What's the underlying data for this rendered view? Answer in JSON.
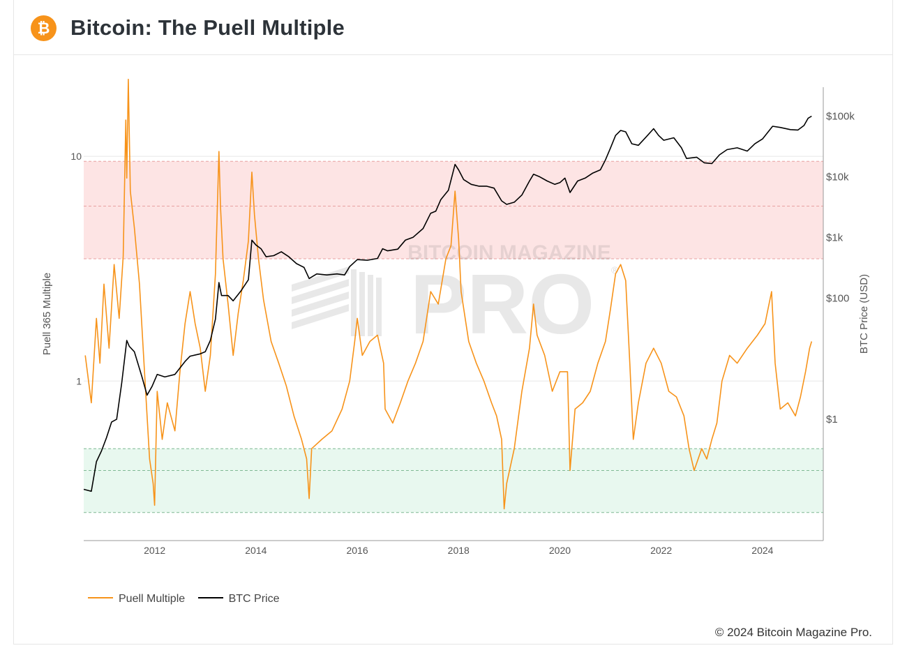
{
  "header": {
    "title": "Bitcoin: The Puell Multiple",
    "logo_glyph": "₿",
    "logo_icon": "bitcoin-logo-icon"
  },
  "watermark": {
    "line1": "BITCOIN MAGAZINE",
    "line2": "PRO",
    "mark": "®"
  },
  "footer": {
    "copyright": "© 2024 Bitcoin Magazine Pro."
  },
  "colors": {
    "puell": "#f7931a",
    "price": "#000000",
    "red_zone": "#fde4e4",
    "green_zone": "#e8f8ef",
    "red_dash": "#e8a0a0",
    "green_dash": "#7fb893",
    "grid": "#e8e8e8",
    "axis": "#999999"
  },
  "chart_data": {
    "type": "line",
    "title": "Bitcoin: The Puell Multiple",
    "xlabel": "",
    "ylabel_left": "Puell 365 Multiple",
    "ylabel_right": "BTC Price (USD)",
    "x_range": [
      2010.6,
      2025.2
    ],
    "x_ticks": [
      2012,
      2014,
      2016,
      2018,
      2020,
      2022,
      2024
    ],
    "y_left": {
      "scale": "log",
      "range": [
        0.195,
        20.3
      ],
      "ticks": [
        1,
        10
      ],
      "tick_labels": [
        "1",
        "10"
      ]
    },
    "y_right": {
      "scale": "log",
      "range": [
        0.01,
        300000
      ],
      "ticks": [
        1,
        100,
        1000,
        10000,
        100000
      ],
      "tick_labels": [
        "$1",
        "$100",
        "$1k",
        "$10k",
        "$100k"
      ]
    },
    "bands": [
      {
        "name": "red-zone",
        "axis": "left",
        "from": 3.5,
        "to": 9.5,
        "dashed_lines": [
          3.5,
          6.0,
          9.5
        ]
      },
      {
        "name": "green-zone",
        "axis": "left",
        "from": 0.26,
        "to": 0.5,
        "dashed_lines": [
          0.26,
          0.4,
          0.5
        ]
      }
    ],
    "legend": {
      "placement": "bottom-left"
    },
    "series": [
      {
        "name": "Puell Multiple",
        "axis": "left",
        "points": [
          [
            2010.63,
            1.3
          ],
          [
            2010.75,
            0.8
          ],
          [
            2010.85,
            1.9
          ],
          [
            2010.92,
            1.2
          ],
          [
            2011.0,
            2.7
          ],
          [
            2011.1,
            1.4
          ],
          [
            2011.2,
            3.3
          ],
          [
            2011.3,
            1.9
          ],
          [
            2011.38,
            3.6
          ],
          [
            2011.43,
            14.5
          ],
          [
            2011.45,
            8.0
          ],
          [
            2011.48,
            22.0
          ],
          [
            2011.52,
            7.0
          ],
          [
            2011.6,
            4.8
          ],
          [
            2011.7,
            2.7
          ],
          [
            2011.8,
            1.1
          ],
          [
            2011.9,
            0.45
          ],
          [
            2011.97,
            0.35
          ],
          [
            2012.0,
            0.28
          ],
          [
            2012.05,
            0.9
          ],
          [
            2012.15,
            0.55
          ],
          [
            2012.25,
            0.8
          ],
          [
            2012.4,
            0.6
          ],
          [
            2012.5,
            1.1
          ],
          [
            2012.6,
            1.8
          ],
          [
            2012.7,
            2.5
          ],
          [
            2012.8,
            1.8
          ],
          [
            2012.9,
            1.4
          ],
          [
            2013.0,
            0.9
          ],
          [
            2013.1,
            1.3
          ],
          [
            2013.2,
            3.0
          ],
          [
            2013.27,
            10.5
          ],
          [
            2013.3,
            6.0
          ],
          [
            2013.35,
            3.5
          ],
          [
            2013.45,
            2.2
          ],
          [
            2013.55,
            1.3
          ],
          [
            2013.65,
            2.0
          ],
          [
            2013.75,
            2.8
          ],
          [
            2013.85,
            4.2
          ],
          [
            2013.92,
            8.5
          ],
          [
            2013.97,
            5.5
          ],
          [
            2014.05,
            3.5
          ],
          [
            2014.15,
            2.3
          ],
          [
            2014.3,
            1.5
          ],
          [
            2014.45,
            1.2
          ],
          [
            2014.6,
            0.95
          ],
          [
            2014.75,
            0.7
          ],
          [
            2014.9,
            0.55
          ],
          [
            2015.0,
            0.45
          ],
          [
            2015.05,
            0.3
          ],
          [
            2015.1,
            0.5
          ],
          [
            2015.3,
            0.55
          ],
          [
            2015.5,
            0.6
          ],
          [
            2015.7,
            0.75
          ],
          [
            2015.85,
            1.0
          ],
          [
            2015.95,
            1.5
          ],
          [
            2016.0,
            1.9
          ],
          [
            2016.1,
            1.3
          ],
          [
            2016.25,
            1.5
          ],
          [
            2016.4,
            1.6
          ],
          [
            2016.52,
            1.2
          ],
          [
            2016.55,
            0.75
          ],
          [
            2016.7,
            0.65
          ],
          [
            2016.85,
            0.8
          ],
          [
            2017.0,
            1.0
          ],
          [
            2017.15,
            1.2
          ],
          [
            2017.3,
            1.5
          ],
          [
            2017.45,
            2.5
          ],
          [
            2017.6,
            2.2
          ],
          [
            2017.75,
            3.5
          ],
          [
            2017.85,
            4.0
          ],
          [
            2017.93,
            7.0
          ],
          [
            2018.0,
            4.3
          ],
          [
            2018.05,
            2.5
          ],
          [
            2018.2,
            1.5
          ],
          [
            2018.35,
            1.2
          ],
          [
            2018.5,
            1.0
          ],
          [
            2018.65,
            0.8
          ],
          [
            2018.75,
            0.7
          ],
          [
            2018.85,
            0.55
          ],
          [
            2018.9,
            0.27
          ],
          [
            2018.95,
            0.35
          ],
          [
            2019.1,
            0.5
          ],
          [
            2019.25,
            0.9
          ],
          [
            2019.4,
            1.4
          ],
          [
            2019.48,
            2.2
          ],
          [
            2019.55,
            1.6
          ],
          [
            2019.7,
            1.3
          ],
          [
            2019.85,
            0.9
          ],
          [
            2020.0,
            1.1
          ],
          [
            2020.15,
            1.1
          ],
          [
            2020.2,
            0.4
          ],
          [
            2020.3,
            0.75
          ],
          [
            2020.45,
            0.8
          ],
          [
            2020.6,
            0.9
          ],
          [
            2020.75,
            1.2
          ],
          [
            2020.9,
            1.5
          ],
          [
            2021.0,
            2.1
          ],
          [
            2021.1,
            3.0
          ],
          [
            2021.2,
            3.3
          ],
          [
            2021.3,
            2.8
          ],
          [
            2021.38,
            1.2
          ],
          [
            2021.45,
            0.55
          ],
          [
            2021.55,
            0.8
          ],
          [
            2021.7,
            1.2
          ],
          [
            2021.85,
            1.4
          ],
          [
            2022.0,
            1.2
          ],
          [
            2022.15,
            0.9
          ],
          [
            2022.3,
            0.85
          ],
          [
            2022.45,
            0.7
          ],
          [
            2022.55,
            0.5
          ],
          [
            2022.65,
            0.4
          ],
          [
            2022.8,
            0.5
          ],
          [
            2022.9,
            0.45
          ],
          [
            2023.0,
            0.55
          ],
          [
            2023.1,
            0.65
          ],
          [
            2023.2,
            1.0
          ],
          [
            2023.35,
            1.3
          ],
          [
            2023.5,
            1.2
          ],
          [
            2023.7,
            1.4
          ],
          [
            2023.9,
            1.6
          ],
          [
            2024.05,
            1.8
          ],
          [
            2024.18,
            2.5
          ],
          [
            2024.25,
            1.2
          ],
          [
            2024.35,
            0.75
          ],
          [
            2024.5,
            0.8
          ],
          [
            2024.65,
            0.7
          ],
          [
            2024.75,
            0.85
          ],
          [
            2024.85,
            1.1
          ],
          [
            2024.93,
            1.4
          ],
          [
            2024.97,
            1.5
          ]
        ]
      },
      {
        "name": "BTC Price",
        "axis": "right",
        "points": [
          [
            2010.6,
            0.07
          ],
          [
            2010.75,
            0.065
          ],
          [
            2010.85,
            0.2
          ],
          [
            2010.95,
            0.3
          ],
          [
            2011.05,
            0.5
          ],
          [
            2011.15,
            0.9
          ],
          [
            2011.25,
            1.0
          ],
          [
            2011.35,
            4.0
          ],
          [
            2011.45,
            20.0
          ],
          [
            2011.5,
            16.0
          ],
          [
            2011.6,
            13.0
          ],
          [
            2011.75,
            5.0
          ],
          [
            2011.85,
            2.5
          ],
          [
            2011.95,
            3.5
          ],
          [
            2012.05,
            5.5
          ],
          [
            2012.2,
            5.0
          ],
          [
            2012.4,
            5.5
          ],
          [
            2012.6,
            9.0
          ],
          [
            2012.7,
            11.0
          ],
          [
            2012.9,
            12.0
          ],
          [
            2013.0,
            13.0
          ],
          [
            2013.1,
            20.0
          ],
          [
            2013.2,
            45.0
          ],
          [
            2013.27,
            180.0
          ],
          [
            2013.32,
            110.0
          ],
          [
            2013.45,
            110.0
          ],
          [
            2013.55,
            90.0
          ],
          [
            2013.7,
            130.0
          ],
          [
            2013.85,
            200.0
          ],
          [
            2013.92,
            900.0
          ],
          [
            2014.0,
            750.0
          ],
          [
            2014.1,
            650.0
          ],
          [
            2014.2,
            480.0
          ],
          [
            2014.35,
            500.0
          ],
          [
            2014.5,
            580.0
          ],
          [
            2014.65,
            480.0
          ],
          [
            2014.8,
            370.0
          ],
          [
            2014.95,
            320.0
          ],
          [
            2015.05,
            210.0
          ],
          [
            2015.2,
            250.0
          ],
          [
            2015.4,
            240.0
          ],
          [
            2015.6,
            250.0
          ],
          [
            2015.75,
            240.0
          ],
          [
            2015.85,
            330.0
          ],
          [
            2016.0,
            430.0
          ],
          [
            2016.2,
            420.0
          ],
          [
            2016.4,
            450.0
          ],
          [
            2016.5,
            650.0
          ],
          [
            2016.6,
            600.0
          ],
          [
            2016.8,
            640.0
          ],
          [
            2016.95,
            900.0
          ],
          [
            2017.1,
            1000.0
          ],
          [
            2017.3,
            1400.0
          ],
          [
            2017.45,
            2500.0
          ],
          [
            2017.55,
            2700.0
          ],
          [
            2017.65,
            4200.0
          ],
          [
            2017.8,
            6000.0
          ],
          [
            2017.93,
            16000.0
          ],
          [
            2018.0,
            13000.0
          ],
          [
            2018.1,
            9000.0
          ],
          [
            2018.25,
            7500.0
          ],
          [
            2018.4,
            7000.0
          ],
          [
            2018.55,
            7000.0
          ],
          [
            2018.7,
            6500.0
          ],
          [
            2018.85,
            4000.0
          ],
          [
            2018.95,
            3500.0
          ],
          [
            2019.1,
            3800.0
          ],
          [
            2019.25,
            5000.0
          ],
          [
            2019.4,
            8500.0
          ],
          [
            2019.48,
            11000.0
          ],
          [
            2019.6,
            10000.0
          ],
          [
            2019.75,
            8500.0
          ],
          [
            2019.9,
            7500.0
          ],
          [
            2020.0,
            8000.0
          ],
          [
            2020.1,
            9500.0
          ],
          [
            2020.2,
            5500.0
          ],
          [
            2020.35,
            8500.0
          ],
          [
            2020.5,
            9500.0
          ],
          [
            2020.65,
            11500.0
          ],
          [
            2020.8,
            13000.0
          ],
          [
            2020.9,
            19000.0
          ],
          [
            2021.0,
            30000.0
          ],
          [
            2021.1,
            48000.0
          ],
          [
            2021.2,
            58000.0
          ],
          [
            2021.3,
            55000.0
          ],
          [
            2021.42,
            35000.0
          ],
          [
            2021.55,
            33000.0
          ],
          [
            2021.7,
            45000.0
          ],
          [
            2021.85,
            62000.0
          ],
          [
            2021.95,
            48000.0
          ],
          [
            2022.05,
            40000.0
          ],
          [
            2022.25,
            44000.0
          ],
          [
            2022.4,
            30000.0
          ],
          [
            2022.5,
            20000.0
          ],
          [
            2022.7,
            21000.0
          ],
          [
            2022.85,
            17000.0
          ],
          [
            2023.0,
            16500.0
          ],
          [
            2023.15,
            23000.0
          ],
          [
            2023.3,
            28000.0
          ],
          [
            2023.5,
            30000.0
          ],
          [
            2023.7,
            26500.0
          ],
          [
            2023.85,
            35000.0
          ],
          [
            2024.0,
            42000.0
          ],
          [
            2024.2,
            68000.0
          ],
          [
            2024.35,
            65000.0
          ],
          [
            2024.55,
            60000.0
          ],
          [
            2024.7,
            59000.0
          ],
          [
            2024.82,
            70000.0
          ],
          [
            2024.9,
            92000.0
          ],
          [
            2024.97,
            100000.0
          ]
        ]
      }
    ]
  }
}
